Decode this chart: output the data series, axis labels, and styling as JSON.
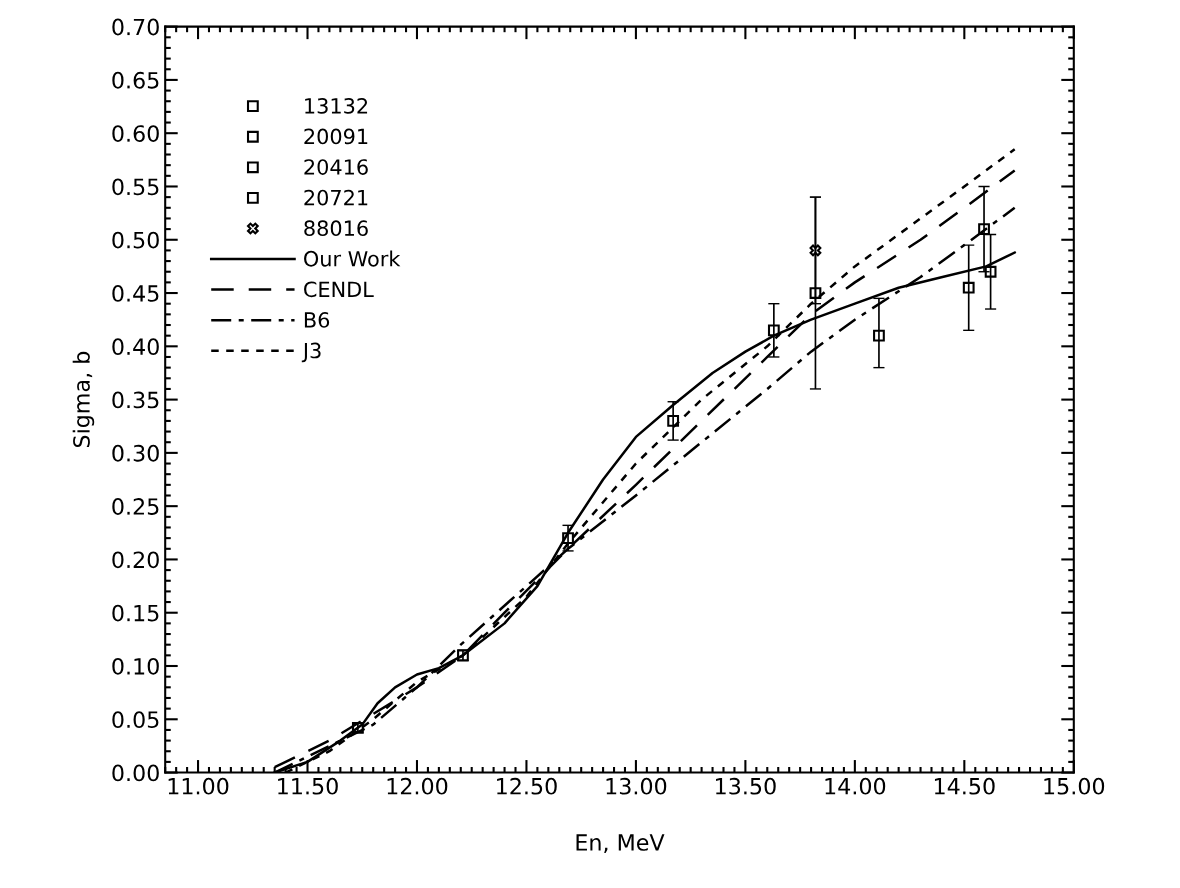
{
  "chart_data": {
    "type": "line",
    "xlabel": "En, MeV",
    "ylabel": "Sigma, b",
    "xlim": [
      10.85,
      15.0
    ],
    "ylim": [
      0.0,
      0.7
    ],
    "xticks": [
      {
        "value": 11.0,
        "label": "11.00"
      },
      {
        "value": 11.5,
        "label": "11.50"
      },
      {
        "value": 12.0,
        "label": "12.00"
      },
      {
        "value": 12.5,
        "label": "12.50"
      },
      {
        "value": 13.0,
        "label": "13.00"
      },
      {
        "value": 13.5,
        "label": "13.50"
      },
      {
        "value": 14.0,
        "label": "14.00"
      },
      {
        "value": 14.5,
        "label": "14.50"
      },
      {
        "value": 15.0,
        "label": "15.00"
      }
    ],
    "yticks": [
      {
        "value": 0.0,
        "label": "0.00"
      },
      {
        "value": 0.05,
        "label": "0.05"
      },
      {
        "value": 0.1,
        "label": "0.10"
      },
      {
        "value": 0.15,
        "label": "0.15"
      },
      {
        "value": 0.2,
        "label": "0.20"
      },
      {
        "value": 0.25,
        "label": "0.25"
      },
      {
        "value": 0.3,
        "label": "0.30"
      },
      {
        "value": 0.35,
        "label": "0.35"
      },
      {
        "value": 0.4,
        "label": "0.40"
      },
      {
        "value": 0.45,
        "label": "0.45"
      },
      {
        "value": 0.5,
        "label": "0.50"
      },
      {
        "value": 0.55,
        "label": "0.55"
      },
      {
        "value": 0.6,
        "label": "0.60"
      },
      {
        "value": 0.65,
        "label": "0.65"
      },
      {
        "value": 0.7,
        "label": "0.70"
      }
    ],
    "grid": false,
    "legend": "top left",
    "series": [
      {
        "name": "13132",
        "type": "scatter",
        "marker": "square",
        "color": "#000000",
        "x": [
          11.73,
          12.21
        ],
        "values": [
          0.042,
          0.11
        ],
        "errors": [
          0.004,
          0.005
        ]
      },
      {
        "name": "20091",
        "type": "scatter",
        "marker": "square",
        "color": "#000000",
        "x": [
          12.69,
          13.17,
          13.63
        ],
        "values": [
          0.22,
          0.33,
          0.415
        ],
        "errors": [
          0.012,
          0.018,
          0.025
        ]
      },
      {
        "name": "20416",
        "type": "scatter",
        "marker": "square",
        "color": "#000000",
        "x": [
          13.82,
          14.11
        ],
        "values": [
          0.45,
          0.41
        ],
        "errors": [
          [
            0.36,
            0.54
          ],
          [
            0.38,
            0.445
          ]
        ]
      },
      {
        "name": "20721",
        "type": "scatter",
        "marker": "square",
        "color": "#000000",
        "x": [
          14.52,
          14.59,
          14.62
        ],
        "values": [
          0.455,
          0.51,
          0.47
        ],
        "errors": [
          0.04,
          0.04,
          0.035
        ]
      },
      {
        "name": "88016",
        "type": "scatter",
        "marker": "cross",
        "color": "#000000",
        "x": [
          13.82
        ],
        "values": [
          0.49
        ],
        "errors": [
          0.05
        ]
      },
      {
        "name": "Our Work",
        "line_style": "solid",
        "color": "#000000",
        "x": [
          11.35,
          11.5,
          11.65,
          11.75,
          11.82,
          11.9,
          12.0,
          12.1,
          12.21,
          12.4,
          12.55,
          12.69,
          12.85,
          13.0,
          13.17,
          13.35,
          13.5,
          13.63,
          13.8,
          14.0,
          14.2,
          14.4,
          14.6,
          14.73
        ],
        "values": [
          0.0,
          0.01,
          0.03,
          0.045,
          0.065,
          0.08,
          0.092,
          0.098,
          0.11,
          0.14,
          0.175,
          0.225,
          0.275,
          0.315,
          0.345,
          0.375,
          0.395,
          0.41,
          0.425,
          0.44,
          0.455,
          0.465,
          0.475,
          0.488
        ]
      },
      {
        "name": "CENDL",
        "line_style": "dashed",
        "color": "#000000",
        "x": [
          11.35,
          11.6,
          11.8,
          12.0,
          12.21,
          12.4,
          12.69,
          13.0,
          13.3,
          13.6,
          13.8,
          14.0,
          14.3,
          14.5,
          14.73
        ],
        "values": [
          0.005,
          0.03,
          0.055,
          0.08,
          0.11,
          0.15,
          0.21,
          0.27,
          0.33,
          0.39,
          0.43,
          0.46,
          0.5,
          0.53,
          0.565
        ]
      },
      {
        "name": "B6",
        "line_style": "dashdot",
        "color": "#000000",
        "x": [
          11.35,
          11.6,
          11.8,
          12.0,
          12.2,
          12.5,
          12.69,
          13.0,
          13.3,
          13.6,
          13.8,
          14.0,
          14.3,
          14.5,
          14.73
        ],
        "values": [
          0.0,
          0.025,
          0.045,
          0.08,
          0.12,
          0.175,
          0.21,
          0.26,
          0.31,
          0.36,
          0.395,
          0.425,
          0.465,
          0.495,
          0.53
        ]
      },
      {
        "name": "J3",
        "line_style": "dotted",
        "color": "#000000",
        "x": [
          11.4,
          11.6,
          11.8,
          12.0,
          12.21,
          12.5,
          12.69,
          13.0,
          13.3,
          13.6,
          13.8,
          14.0,
          14.3,
          14.5,
          14.73
        ],
        "values": [
          0.0,
          0.02,
          0.05,
          0.085,
          0.11,
          0.165,
          0.215,
          0.29,
          0.35,
          0.4,
          0.44,
          0.475,
          0.52,
          0.55,
          0.585
        ]
      }
    ]
  }
}
